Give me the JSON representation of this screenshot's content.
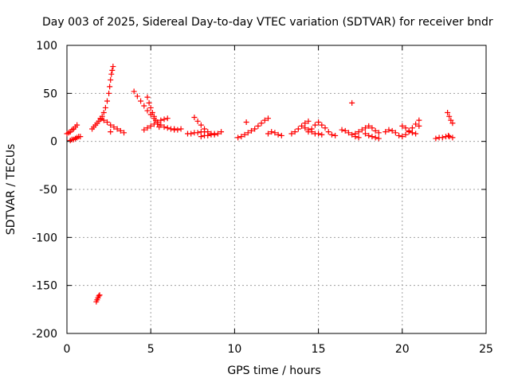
{
  "chart_data": {
    "type": "scatter",
    "title": "Day 003 of 2025, Sidereal Day-to-day VTEC variation (SDTVAR) for receiver bndr",
    "xlabel": "GPS time / hours",
    "ylabel": "SDTVAR / TECUs",
    "xlim": [
      0,
      25
    ],
    "ylim": [
      -200,
      100
    ],
    "xticks": [
      0,
      5,
      10,
      15,
      20,
      25
    ],
    "yticks": [
      -200,
      -150,
      -100,
      -50,
      0,
      50,
      100
    ],
    "grid": true,
    "marker": "+",
    "color": "#ff0000",
    "series": [
      {
        "name": "SDTVAR",
        "points": [
          [
            0.0,
            8
          ],
          [
            0.1,
            9
          ],
          [
            0.2,
            10
          ],
          [
            0.3,
            12
          ],
          [
            0.4,
            13
          ],
          [
            0.5,
            15
          ],
          [
            0.6,
            17
          ],
          [
            0.2,
            1
          ],
          [
            0.3,
            2
          ],
          [
            0.4,
            2
          ],
          [
            0.5,
            3
          ],
          [
            0.6,
            4
          ],
          [
            0.7,
            5
          ],
          [
            0.8,
            5
          ],
          [
            1.5,
            13
          ],
          [
            1.6,
            15
          ],
          [
            1.7,
            17
          ],
          [
            1.8,
            19
          ],
          [
            1.9,
            21
          ],
          [
            2.0,
            23
          ],
          [
            2.1,
            26
          ],
          [
            2.2,
            30
          ],
          [
            2.3,
            35
          ],
          [
            2.4,
            42
          ],
          [
            2.5,
            50
          ],
          [
            2.55,
            57
          ],
          [
            2.6,
            64
          ],
          [
            2.65,
            70
          ],
          [
            2.7,
            74
          ],
          [
            2.75,
            78
          ],
          [
            2.0,
            24
          ],
          [
            2.2,
            22
          ],
          [
            2.4,
            20
          ],
          [
            2.6,
            17
          ],
          [
            2.8,
            15
          ],
          [
            3.0,
            13
          ],
          [
            3.2,
            11
          ],
          [
            3.4,
            9
          ],
          [
            2.6,
            10
          ],
          [
            1.75,
            -167
          ],
          [
            1.8,
            -165
          ],
          [
            1.85,
            -163
          ],
          [
            1.9,
            -161
          ],
          [
            1.95,
            -160
          ],
          [
            4.0,
            52
          ],
          [
            4.2,
            47
          ],
          [
            4.4,
            42
          ],
          [
            4.6,
            37
          ],
          [
            4.8,
            32
          ],
          [
            5.0,
            28
          ],
          [
            5.2,
            24
          ],
          [
            5.4,
            20
          ],
          [
            5.6,
            17
          ],
          [
            5.8,
            15
          ],
          [
            6.0,
            14
          ],
          [
            6.2,
            13
          ],
          [
            6.4,
            13
          ],
          [
            4.8,
            46
          ],
          [
            4.9,
            40
          ],
          [
            5.0,
            35
          ],
          [
            5.1,
            30
          ],
          [
            5.2,
            26
          ],
          [
            5.3,
            22
          ],
          [
            5.4,
            18
          ],
          [
            5.5,
            15
          ],
          [
            4.6,
            12
          ],
          [
            4.8,
            14
          ],
          [
            5.0,
            16
          ],
          [
            5.2,
            18
          ],
          [
            5.4,
            20
          ],
          [
            5.6,
            22
          ],
          [
            5.8,
            23
          ],
          [
            6.0,
            24
          ],
          [
            6.4,
            12
          ],
          [
            6.6,
            12
          ],
          [
            6.8,
            13
          ],
          [
            7.2,
            8
          ],
          [
            7.4,
            8
          ],
          [
            7.6,
            9
          ],
          [
            7.8,
            9
          ],
          [
            8.0,
            10
          ],
          [
            8.2,
            10
          ],
          [
            7.6,
            25
          ],
          [
            7.8,
            21
          ],
          [
            8.0,
            17
          ],
          [
            8.2,
            13
          ],
          [
            8.4,
            10
          ],
          [
            8.6,
            8
          ],
          [
            8.8,
            7
          ],
          [
            9.0,
            8
          ],
          [
            9.2,
            10
          ],
          [
            8.0,
            5
          ],
          [
            8.2,
            6
          ],
          [
            8.4,
            6
          ],
          [
            8.6,
            7
          ],
          [
            8.8,
            8
          ],
          [
            10.2,
            4
          ],
          [
            10.4,
            5
          ],
          [
            10.6,
            7
          ],
          [
            10.8,
            9
          ],
          [
            11.0,
            11
          ],
          [
            11.2,
            13
          ],
          [
            11.4,
            16
          ],
          [
            11.6,
            19
          ],
          [
            11.8,
            22
          ],
          [
            12.0,
            24
          ],
          [
            10.7,
            20
          ],
          [
            12.0,
            8
          ],
          [
            12.2,
            10
          ],
          [
            12.4,
            9
          ],
          [
            12.6,
            7
          ],
          [
            12.8,
            6
          ],
          [
            13.4,
            8
          ],
          [
            13.6,
            10
          ],
          [
            13.8,
            13
          ],
          [
            14.0,
            16
          ],
          [
            14.2,
            19
          ],
          [
            14.4,
            21
          ],
          [
            14.2,
            14
          ],
          [
            14.4,
            12
          ],
          [
            14.6,
            10
          ],
          [
            14.8,
            8
          ],
          [
            15.0,
            8
          ],
          [
            15.2,
            7
          ],
          [
            14.4,
            10
          ],
          [
            14.6,
            13
          ],
          [
            14.8,
            17
          ],
          [
            15.0,
            20
          ],
          [
            15.2,
            17
          ],
          [
            15.4,
            14
          ],
          [
            15.6,
            10
          ],
          [
            15.8,
            7
          ],
          [
            16.0,
            6
          ],
          [
            16.4,
            12
          ],
          [
            16.6,
            11
          ],
          [
            16.8,
            9
          ],
          [
            17.0,
            7
          ],
          [
            17.2,
            5
          ],
          [
            17.4,
            4
          ],
          [
            17.0,
            40
          ],
          [
            17.2,
            8
          ],
          [
            17.4,
            10
          ],
          [
            17.6,
            12
          ],
          [
            17.8,
            14
          ],
          [
            18.0,
            16
          ],
          [
            18.2,
            14
          ],
          [
            18.4,
            11
          ],
          [
            18.6,
            9
          ],
          [
            17.8,
            8
          ],
          [
            18.0,
            6
          ],
          [
            18.2,
            5
          ],
          [
            18.4,
            4
          ],
          [
            18.6,
            3
          ],
          [
            19.0,
            10
          ],
          [
            19.2,
            12
          ],
          [
            19.4,
            11
          ],
          [
            19.6,
            9
          ],
          [
            19.8,
            6
          ],
          [
            20.0,
            5
          ],
          [
            20.2,
            7
          ],
          [
            20.4,
            10
          ],
          [
            20.6,
            14
          ],
          [
            20.8,
            18
          ],
          [
            21.0,
            22
          ],
          [
            20.0,
            16
          ],
          [
            20.2,
            14
          ],
          [
            20.4,
            11
          ],
          [
            20.6,
            9
          ],
          [
            20.8,
            8
          ],
          [
            21.0,
            16
          ],
          [
            22.0,
            3
          ],
          [
            22.2,
            4
          ],
          [
            22.4,
            4
          ],
          [
            22.6,
            5
          ],
          [
            22.8,
            5
          ],
          [
            23.0,
            4
          ],
          [
            22.7,
            30
          ],
          [
            22.8,
            26
          ],
          [
            22.9,
            22
          ],
          [
            23.0,
            19
          ],
          [
            22.75,
            6
          ]
        ]
      }
    ]
  }
}
